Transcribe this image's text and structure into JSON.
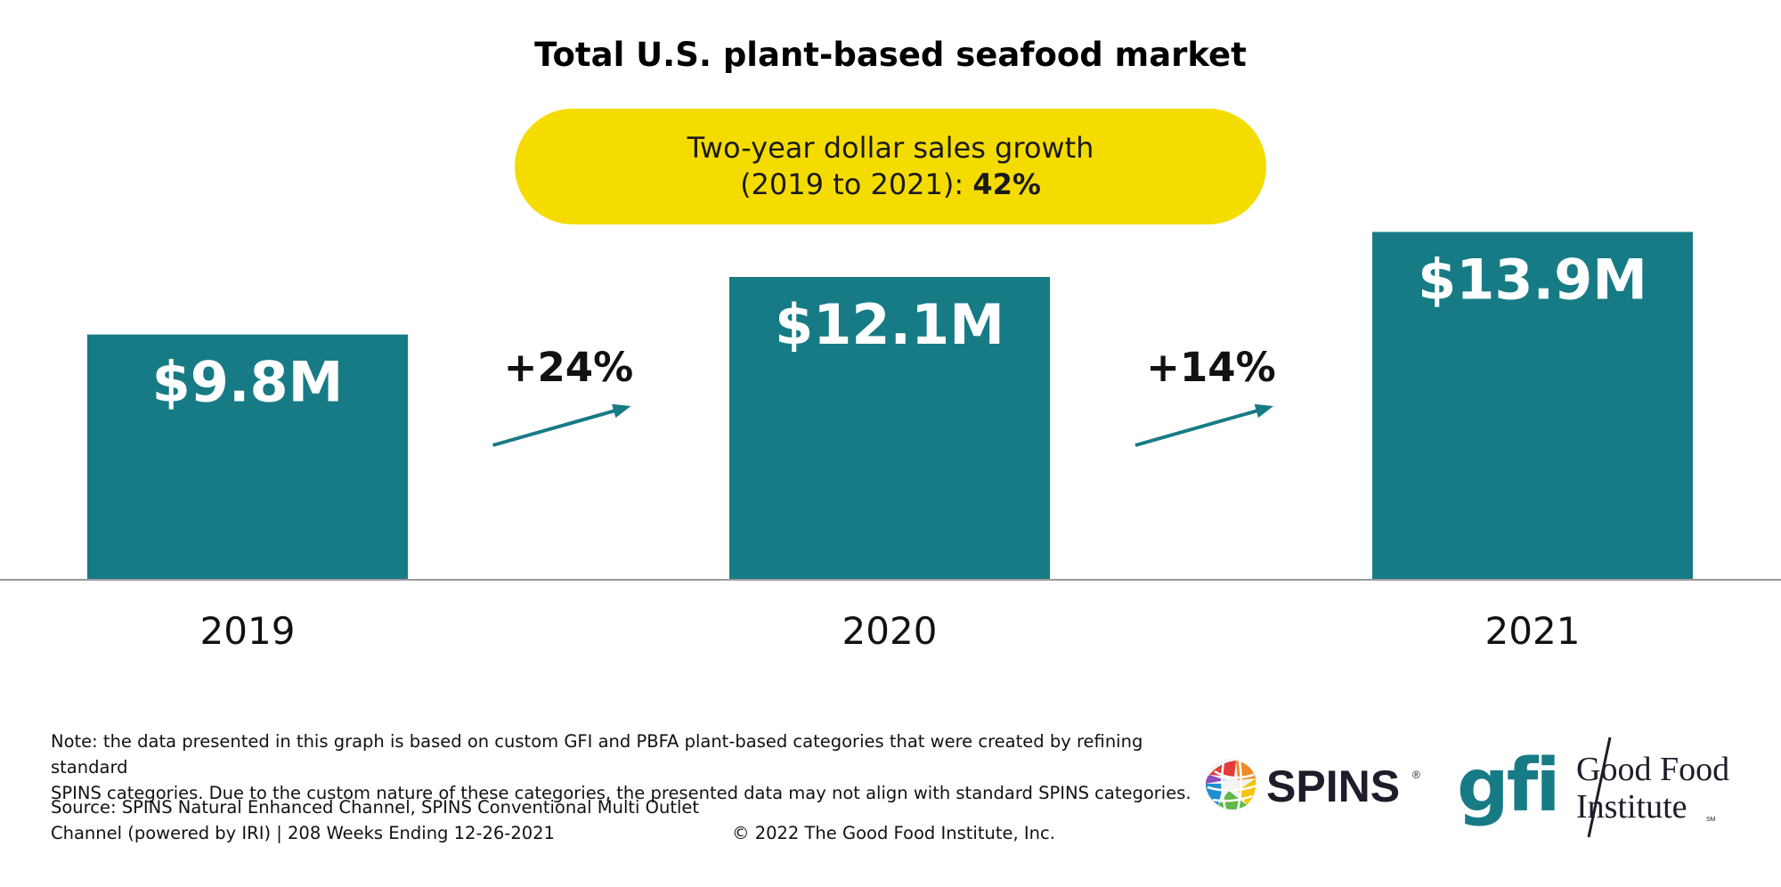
{
  "chart_data": {
    "type": "bar",
    "title": "Total U.S. plant-based seafood market",
    "categories": [
      "2019",
      "2020",
      "2021"
    ],
    "values": [
      9.8,
      12.1,
      13.9
    ],
    "value_labels": [
      "$9.8M",
      "$12.1M",
      "$13.9M"
    ],
    "unit": "$M",
    "growth": [
      {
        "from": "2019",
        "to": "2020",
        "label": "+24%"
      },
      {
        "from": "2020",
        "to": "2021",
        "label": "+14%"
      }
    ],
    "callout": {
      "line1": "Two-year dollar sales growth",
      "line2": "(2019 to 2021):",
      "value": "42%"
    },
    "grid": false,
    "legend": "none",
    "bar_color": "#177b86",
    "arrow_color": "#177b86",
    "callout_color": "#f5dc00"
  },
  "footer": {
    "note_line1": "Note: the data presented in this graph is based on custom GFI and PBFA plant-based categories that were created by refining standard",
    "note_line2": "SPINS categories. Due to the custom nature of these categories, the presented data may not align with standard SPINS categories.",
    "source_line1": "Source: SPINS Natural Enhanced Channel, SPINS Conventional Multi Outlet",
    "source_line2": "Channel (powered by IRI) | 208 Weeks Ending 12-26-2021",
    "copyright": "© 2022 The Good Food Institute, Inc."
  },
  "logos": {
    "spins": {
      "text": "SPINS",
      "registered": "®",
      "icon": "globe-icon"
    },
    "gfi": {
      "mark": "gfi",
      "line1": "Good Food",
      "line2": "Institute",
      "sm": "SM",
      "color": "#177b86"
    }
  }
}
